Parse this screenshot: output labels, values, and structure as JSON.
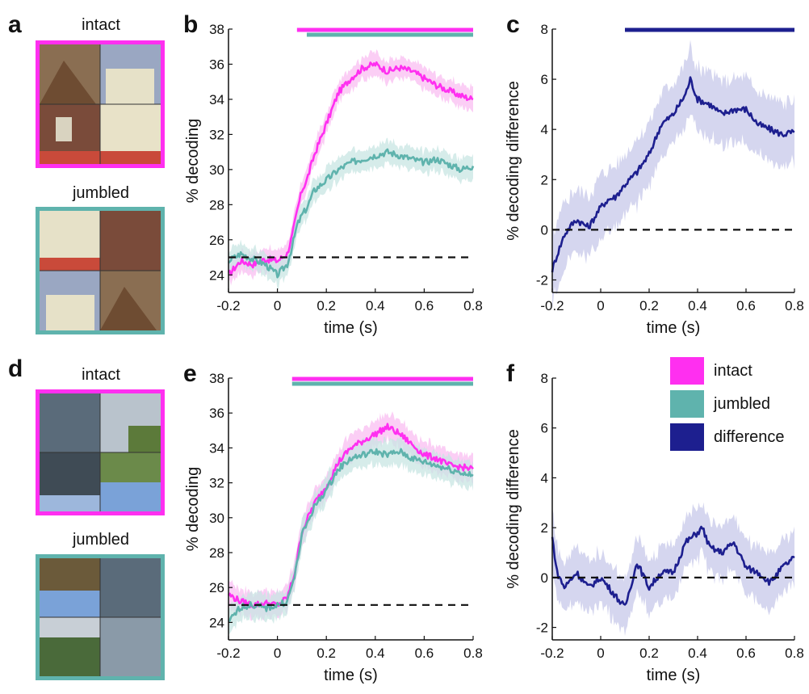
{
  "panels": {
    "a": {
      "letter": "a",
      "top_label": "intact",
      "bottom_label": "jumbled"
    },
    "d": {
      "letter": "d",
      "top_label": "intact",
      "bottom_label": "jumbled"
    },
    "b": {
      "letter": "b"
    },
    "c": {
      "letter": "c"
    },
    "e": {
      "letter": "e"
    },
    "f": {
      "letter": "f"
    }
  },
  "colors": {
    "intact": "#ff2ff0",
    "jumbled": "#5fb3ad",
    "difference": "#1d1f8f",
    "intact_band": "#f9bdf2",
    "jumbled_band": "#c8e6e3",
    "difference_band": "#c7c8ea"
  },
  "legend": [
    {
      "name": "intact",
      "color": "#ff2ff0"
    },
    {
      "name": "jumbled",
      "color": "#5fb3ad"
    },
    {
      "name": "difference",
      "color": "#1d1f8f"
    }
  ],
  "chart_data": [
    {
      "id": "b",
      "type": "line",
      "title": "",
      "xlabel": "time (s)",
      "ylabel": "% decoding",
      "xlim": [
        -0.2,
        0.8
      ],
      "ylim": [
        23,
        38
      ],
      "xticks": [
        "-0.2",
        "0",
        "0.2",
        "0.4",
        "0.6",
        "0.8"
      ],
      "yticks": [
        "24",
        "26",
        "28",
        "30",
        "32",
        "34",
        "36",
        "38"
      ],
      "chance_line": 25,
      "significance_bars": [
        {
          "series": "intact",
          "from": 0.08,
          "to": 0.8
        },
        {
          "series": "jumbled",
          "from": 0.12,
          "to": 0.8
        }
      ],
      "series": [
        {
          "name": "intact",
          "band": 0.6,
          "x": [
            -0.2,
            -0.15,
            -0.1,
            -0.05,
            0,
            0.04,
            0.06,
            0.08,
            0.1,
            0.12,
            0.15,
            0.2,
            0.25,
            0.3,
            0.35,
            0.4,
            0.45,
            0.5,
            0.55,
            0.6,
            0.65,
            0.7,
            0.75,
            0.8
          ],
          "y": [
            24.0,
            24.8,
            24.6,
            24.9,
            24.8,
            25.2,
            26.2,
            27.6,
            28.8,
            29.4,
            30.8,
            32.6,
            34.4,
            35.2,
            35.8,
            36.0,
            35.6,
            35.8,
            35.6,
            35.2,
            34.8,
            34.5,
            34.2,
            34.0
          ]
        },
        {
          "name": "jumbled",
          "band": 0.6,
          "x": [
            -0.2,
            -0.15,
            -0.1,
            -0.05,
            0,
            0.04,
            0.06,
            0.08,
            0.1,
            0.12,
            0.15,
            0.2,
            0.25,
            0.3,
            0.35,
            0.4,
            0.45,
            0.5,
            0.55,
            0.6,
            0.65,
            0.7,
            0.75,
            0.8
          ],
          "y": [
            24.8,
            25.2,
            24.9,
            24.6,
            24.0,
            24.6,
            25.6,
            26.8,
            27.4,
            27.8,
            28.8,
            29.4,
            30.0,
            30.4,
            30.6,
            30.8,
            31.0,
            30.8,
            30.6,
            30.4,
            30.6,
            30.3,
            30.0,
            30.2
          ]
        }
      ]
    },
    {
      "id": "c",
      "type": "line",
      "title": "",
      "xlabel": "time (s)",
      "ylabel": "% decoding difference",
      "xlim": [
        -0.2,
        0.8
      ],
      "ylim": [
        -2.5,
        8
      ],
      "xticks": [
        "-0.2",
        "0",
        "0.2",
        "0.4",
        "0.6",
        "0.8"
      ],
      "yticks": [
        "-2",
        "0",
        "2",
        "4",
        "6",
        "8"
      ],
      "chance_line": 0,
      "significance_bars": [
        {
          "series": "difference",
          "from": 0.1,
          "to": 0.8
        }
      ],
      "series": [
        {
          "name": "difference",
          "band": 1.2,
          "x": [
            -0.2,
            -0.18,
            -0.15,
            -0.12,
            -0.1,
            -0.05,
            0,
            0.03,
            0.06,
            0.1,
            0.15,
            0.2,
            0.25,
            0.3,
            0.35,
            0.37,
            0.4,
            0.45,
            0.5,
            0.55,
            0.6,
            0.65,
            0.7,
            0.75,
            0.8
          ],
          "y": [
            -1.6,
            -1.0,
            -0.2,
            0.2,
            0.4,
            0.1,
            0.9,
            1.2,
            1.3,
            1.8,
            2.3,
            3.0,
            4.2,
            4.6,
            5.4,
            6.0,
            5.2,
            5.0,
            4.6,
            4.8,
            4.8,
            4.2,
            4.0,
            3.8,
            3.9
          ]
        }
      ]
    },
    {
      "id": "e",
      "type": "line",
      "title": "",
      "xlabel": "time (s)",
      "ylabel": "% decoding",
      "xlim": [
        -0.2,
        0.8
      ],
      "ylim": [
        23,
        38
      ],
      "xticks": [
        "-0.2",
        "0",
        "0.2",
        "0.4",
        "0.6",
        "0.8"
      ],
      "yticks": [
        "24",
        "26",
        "28",
        "30",
        "32",
        "34",
        "36",
        "38"
      ],
      "chance_line": 25,
      "significance_bars": [
        {
          "series": "intact",
          "from": 0.06,
          "to": 0.8
        },
        {
          "series": "jumbled",
          "from": 0.06,
          "to": 0.8
        }
      ],
      "series": [
        {
          "name": "intact",
          "band": 0.7,
          "x": [
            -0.2,
            -0.15,
            -0.1,
            -0.05,
            0,
            0.04,
            0.07,
            0.1,
            0.15,
            0.2,
            0.25,
            0.3,
            0.35,
            0.4,
            0.45,
            0.5,
            0.55,
            0.6,
            0.65,
            0.7,
            0.75,
            0.8
          ],
          "y": [
            25.6,
            25.2,
            25.0,
            25.1,
            25.0,
            25.4,
            26.8,
            29.2,
            30.8,
            31.8,
            33.2,
            34.0,
            34.4,
            34.8,
            35.2,
            34.8,
            34.2,
            33.6,
            33.4,
            33.0,
            32.9,
            32.8
          ]
        },
        {
          "name": "jumbled",
          "band": 0.7,
          "x": [
            -0.2,
            -0.15,
            -0.1,
            -0.05,
            0,
            0.04,
            0.07,
            0.1,
            0.15,
            0.2,
            0.25,
            0.3,
            0.35,
            0.4,
            0.45,
            0.5,
            0.55,
            0.6,
            0.65,
            0.7,
            0.75,
            0.8
          ],
          "y": [
            24.0,
            24.9,
            25.0,
            24.8,
            25.0,
            25.2,
            26.6,
            29.0,
            30.6,
            31.6,
            32.8,
            33.4,
            33.6,
            33.8,
            33.6,
            33.8,
            33.4,
            33.2,
            33.0,
            32.8,
            32.6,
            32.4
          ]
        }
      ]
    },
    {
      "id": "f",
      "type": "line",
      "title": "",
      "xlabel": "time (s)",
      "ylabel": "% decoding difference",
      "xlim": [
        -0.2,
        0.8
      ],
      "ylim": [
        -2.5,
        8
      ],
      "xticks": [
        "-0.2",
        "0",
        "0.2",
        "0.4",
        "0.6",
        "0.8"
      ],
      "yticks": [
        "-2",
        "0",
        "2",
        "4",
        "6",
        "8"
      ],
      "chance_line": 0,
      "significance_bars": [],
      "series": [
        {
          "name": "difference",
          "band": 1.0,
          "x": [
            -0.2,
            -0.18,
            -0.15,
            -0.1,
            -0.05,
            0,
            0.05,
            0.1,
            0.15,
            0.2,
            0.25,
            0.3,
            0.35,
            0.4,
            0.42,
            0.45,
            0.5,
            0.55,
            0.6,
            0.65,
            0.7,
            0.75,
            0.8
          ],
          "y": [
            1.6,
            0.2,
            -0.4,
            0.2,
            -0.4,
            0.0,
            -0.6,
            -1.2,
            0.6,
            -0.4,
            0.2,
            0.2,
            1.4,
            1.8,
            2.0,
            1.2,
            1.0,
            1.4,
            0.4,
            0.2,
            -0.2,
            0.4,
            0.8
          ]
        }
      ]
    }
  ]
}
